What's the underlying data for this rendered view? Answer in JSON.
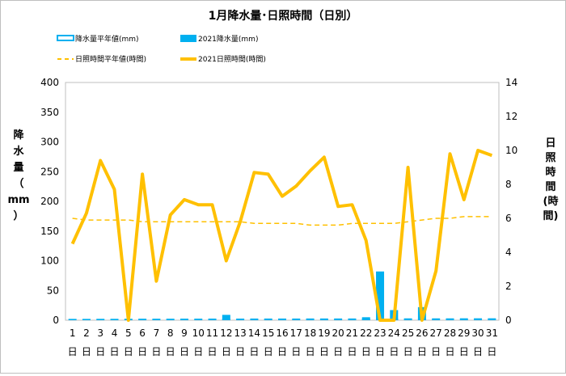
{
  "chart_data": {
    "type": "bar+line",
    "title": "1月降水量･日照時間（日別）",
    "ylabel_left": [
      "降",
      "水",
      "量",
      "（",
      "mm",
      "）"
    ],
    "ylabel_right": [
      "日",
      "照",
      "時",
      "間",
      "(時",
      "間)"
    ],
    "categories": [
      "1",
      "2",
      "3",
      "4",
      "5",
      "6",
      "7",
      "8",
      "9",
      "10",
      "11",
      "12",
      "13",
      "14",
      "15",
      "16",
      "17",
      "18",
      "19",
      "20",
      "21",
      "22",
      "23",
      "24",
      "25",
      "26",
      "27",
      "28",
      "29",
      "30",
      "31"
    ],
    "category_suffix": "日",
    "y_left": {
      "min": 0,
      "max": 400,
      "step": 50,
      "ticks": [
        "0",
        "50",
        "100",
        "150",
        "200",
        "250",
        "300",
        "350",
        "400"
      ]
    },
    "y_right": {
      "min": 0,
      "max": 14,
      "step": 2,
      "ticks": [
        "0",
        "2",
        "4",
        "6",
        "8",
        "10",
        "12",
        "14"
      ]
    },
    "legend": {
      "precip_normal": "降水量平年値(mm)",
      "precip_2021": "2021降水量(mm)",
      "sun_normal": "日照時間平年値(時間)",
      "sun_2021": "2021日照時間(時間)"
    },
    "legend_position": "top",
    "series": [
      {
        "key": "precip_normal",
        "axis": "left",
        "kind": "bar",
        "color": "#00b0f0",
        "values": [
          2.2,
          2.2,
          2.3,
          2.3,
          2.4,
          2.5,
          2.5,
          2.5,
          2.6,
          2.6,
          2.7,
          2.7,
          2.7,
          2.8,
          2.8,
          2.8,
          2.8,
          2.9,
          2.9,
          2.9,
          2.9,
          3.0,
          3.0,
          3.0,
          3.1,
          3.1,
          3.1,
          3.1,
          3.2,
          3.2,
          3.2
        ]
      },
      {
        "key": "precip_2021",
        "axis": "left",
        "kind": "bar",
        "color": "#00b0f0",
        "values": [
          0,
          0,
          0,
          0,
          0,
          0,
          0,
          0,
          0,
          0,
          0,
          9,
          0,
          0,
          0,
          0,
          0,
          0,
          0,
          0,
          0,
          5,
          82,
          17,
          0,
          22,
          0,
          0,
          0,
          0,
          0
        ]
      },
      {
        "key": "sun_normal",
        "axis": "right",
        "kind": "line",
        "color": "#ffc000",
        "dashed": true,
        "values": [
          6.0,
          5.9,
          5.9,
          5.9,
          5.9,
          5.8,
          5.8,
          5.8,
          5.8,
          5.8,
          5.8,
          5.8,
          5.8,
          5.7,
          5.7,
          5.7,
          5.7,
          5.6,
          5.6,
          5.6,
          5.7,
          5.7,
          5.7,
          5.7,
          5.8,
          5.9,
          6.0,
          6.0,
          6.1,
          6.1,
          6.1
        ]
      },
      {
        "key": "sun_2021",
        "axis": "right",
        "kind": "line",
        "color": "#ffc000",
        "values": [
          4.5,
          6.3,
          9.4,
          7.7,
          0.0,
          8.6,
          2.3,
          6.2,
          7.1,
          6.8,
          6.8,
          3.5,
          5.8,
          8.7,
          8.6,
          7.3,
          7.9,
          8.8,
          9.6,
          6.7,
          6.8,
          4.7,
          0.0,
          0.0,
          9.0,
          0.0,
          2.9,
          9.8,
          7.1,
          10.0,
          9.7
        ]
      }
    ],
    "grid": false
  }
}
